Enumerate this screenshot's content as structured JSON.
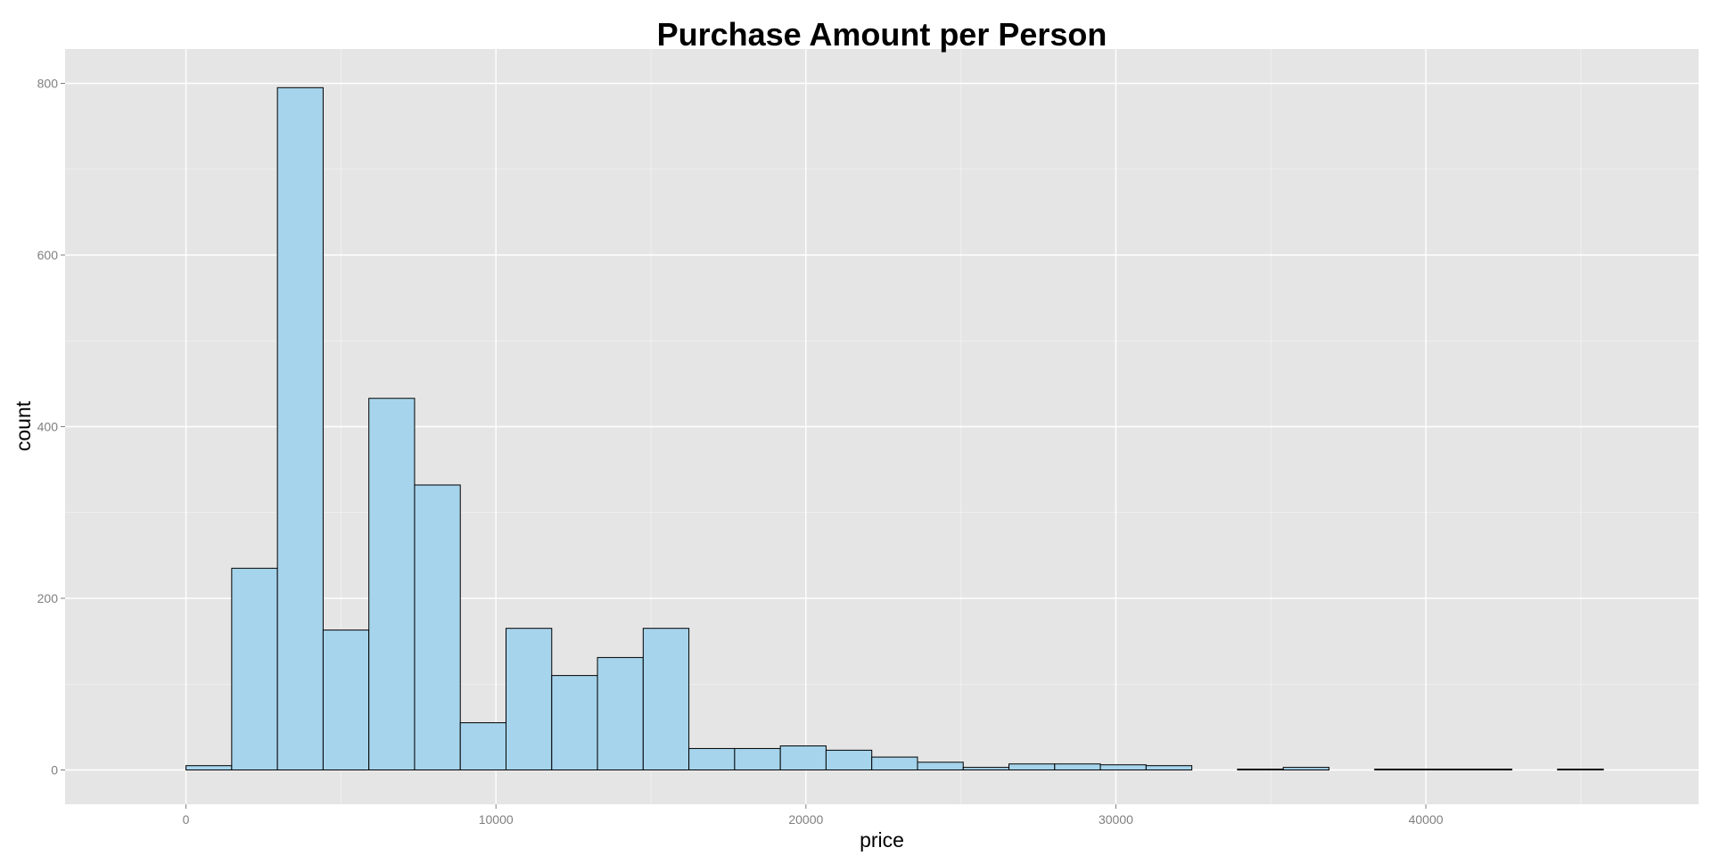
{
  "chart_data": {
    "type": "bar",
    "subtype": "histogram",
    "title": "Purchase Amount per Person",
    "xlabel": "price",
    "ylabel": "count",
    "xlim": [
      -3900,
      48800
    ],
    "ylim": [
      -40,
      840
    ],
    "x_ticks": [
      0,
      10000,
      20000,
      30000,
      40000
    ],
    "y_ticks": [
      0,
      200,
      400,
      600,
      800
    ],
    "binwidth": 1475,
    "bin_start": -1475,
    "values": [
      0,
      5,
      235,
      795,
      163,
      433,
      332,
      55,
      165,
      110,
      131,
      165,
      25,
      25,
      28,
      23,
      15,
      9,
      3,
      7,
      7,
      6,
      5,
      0,
      1,
      3,
      0,
      1,
      1,
      1,
      0,
      1,
      0
    ],
    "grid": true,
    "legend": "none",
    "colors": {
      "bar_fill": "#a6d4ec",
      "bar_outline": "#000000",
      "panel_background": "#e5e5e5",
      "gridline": "#ffffff",
      "tick_label": "#7f7f7f"
    }
  }
}
